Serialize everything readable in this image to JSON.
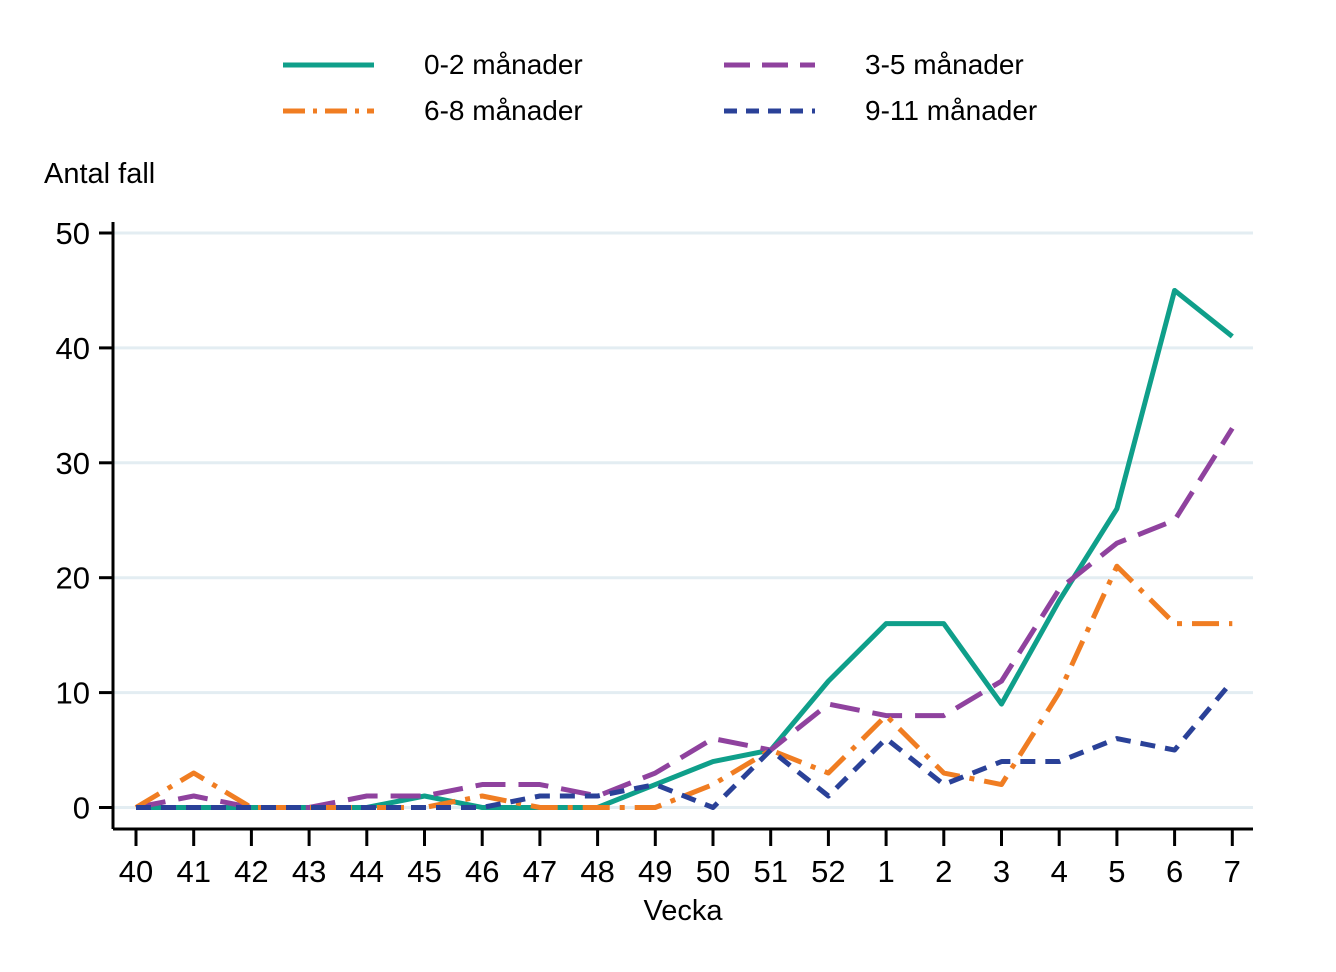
{
  "chart_data": {
    "type": "line",
    "title": "Antal fall",
    "xlabel": "Vecka",
    "ylim": [
      0,
      50
    ],
    "yticks": [
      0,
      10,
      20,
      30,
      40,
      50
    ],
    "grid": "horizontal",
    "legend_position": "top-center",
    "x": [
      "40",
      "41",
      "42",
      "43",
      "44",
      "45",
      "46",
      "47",
      "48",
      "49",
      "50",
      "51",
      "52",
      "1",
      "2",
      "3",
      "4",
      "5",
      "6",
      "7"
    ],
    "series": [
      {
        "name": "0-2 månader",
        "color": "#0f9f8a",
        "dash": "solid",
        "values": [
          0,
          0,
          0,
          0,
          0,
          1,
          0,
          0,
          0,
          2,
          4,
          5,
          11,
          16,
          16,
          9,
          18,
          26,
          45,
          41
        ]
      },
      {
        "name": "3-5 månader",
        "color": "#8f429e",
        "dash": "long-dash",
        "values": [
          0,
          1,
          0,
          0,
          1,
          1,
          2,
          2,
          1,
          3,
          6,
          5,
          9,
          8,
          8,
          11,
          19,
          23,
          25,
          33
        ]
      },
      {
        "name": "6-8 månader",
        "color": "#f07d22",
        "dash": "dash-dot",
        "values": [
          0,
          3,
          0,
          0,
          0,
          0,
          1,
          0,
          0,
          0,
          2,
          5,
          3,
          8,
          3,
          2,
          10,
          21,
          16,
          16
        ]
      },
      {
        "name": "9-11 månader",
        "color": "#2a4198",
        "dash": "dash",
        "values": [
          0,
          0,
          0,
          0,
          0,
          0,
          0,
          1,
          1,
          2,
          0,
          5,
          1,
          6,
          2,
          4,
          4,
          6,
          5,
          11
        ]
      }
    ],
    "colors": {
      "gridline": "#e3edf2",
      "axis": "#000000",
      "text": "#000000",
      "background": "#ffffff"
    }
  }
}
